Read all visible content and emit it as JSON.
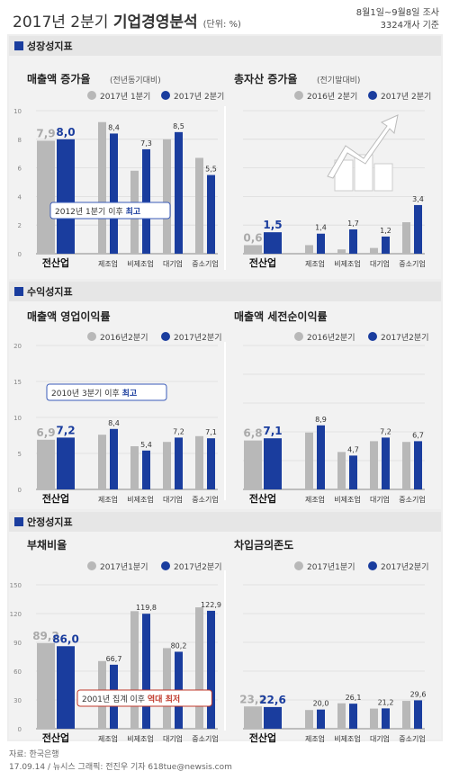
{
  "header": {
    "title_plain": "2017년 2분기 ",
    "title_bold": "기업경영분석",
    "unit": "(단위: %)",
    "period_line1": "8월1일~9월8일 조사",
    "period_line2": "3324개사 기준"
  },
  "sections": [
    {
      "title": "성장성지표"
    },
    {
      "title": "수익성지표"
    },
    {
      "title": "안정성지표"
    }
  ],
  "footer": {
    "source": "자료: 한국은행",
    "credit": "17.09.14 / 뉴시스 그래픽: 전진우 기자 618tue@newsis.com"
  },
  "colors": {
    "prev": "#b8b8b8",
    "curr": "#1a3d9e",
    "header_bar": "#1a3d9e",
    "section_bg": "#e6e6e6",
    "panel_bg": "#f2f2f2",
    "highlight_red": "#c0392b"
  },
  "chart_data": [
    {
      "type": "bar",
      "title": "매출액 증가율",
      "subtitle": "(전년동기대비)",
      "categories": [
        "전산업",
        "제조업",
        "비제조업",
        "대기업",
        "중소기업"
      ],
      "series": [
        {
          "name": "2017년 1분기",
          "values": [
            7.9,
            9.2,
            5.8,
            8.0,
            6.7
          ]
        },
        {
          "name": "2017년 2분기",
          "values": [
            8.0,
            8.4,
            7.3,
            8.5,
            5.5
          ]
        }
      ],
      "value_labels": [
        "7,9",
        "8,0",
        "8,4",
        "7,3",
        "8,5",
        "5,5"
      ],
      "ylim": [
        0,
        10
      ],
      "yticks": [
        "10",
        "8",
        "6",
        "4",
        "2",
        "0"
      ],
      "annotation": {
        "text": "2012년 1분기 이후 ",
        "bold": "최고"
      }
    },
    {
      "type": "bar",
      "title": "총자산 증가율",
      "subtitle": "(전기말대비)",
      "categories": [
        "전산업",
        "제조업",
        "비제조업",
        "대기업",
        "중소기업"
      ],
      "series": [
        {
          "name": "2016년 2분기",
          "values": [
            0.6,
            0.6,
            0.3,
            0.4,
            2.2
          ]
        },
        {
          "name": "2017년 2분기",
          "values": [
            1.5,
            1.4,
            1.7,
            1.2,
            3.4
          ]
        }
      ],
      "value_labels": [
        "0,6",
        "1,5",
        "1,4",
        "1,7",
        "1,2",
        "3,4"
      ],
      "ylim": [
        0,
        10
      ]
    },
    {
      "type": "bar",
      "title": "매출액 영업이익률",
      "categories": [
        "전산업",
        "제조업",
        "비제조업",
        "대기업",
        "중소기업"
      ],
      "series": [
        {
          "name": "2016년2분기",
          "values": [
            6.9,
            7.6,
            6.0,
            6.6,
            7.4
          ]
        },
        {
          "name": "2017년2분기",
          "values": [
            7.2,
            8.4,
            5.4,
            7.2,
            7.1
          ]
        }
      ],
      "value_labels": [
        "6,9",
        "7,2",
        "8,4",
        "5,4",
        "7,2",
        "7,1"
      ],
      "ylim": [
        0,
        20
      ],
      "yticks": [
        "20",
        "15",
        "10",
        "5",
        "0"
      ],
      "annotation": {
        "text": "2010년 3분기 이후 ",
        "bold": "최고"
      }
    },
    {
      "type": "bar",
      "title": "매출액 세전순이익률",
      "categories": [
        "전산업",
        "제조업",
        "비제조업",
        "대기업",
        "중소기업"
      ],
      "series": [
        {
          "name": "2016년2분기",
          "values": [
            6.8,
            7.9,
            5.2,
            6.7,
            6.6
          ]
        },
        {
          "name": "2017년2분기",
          "values": [
            7.1,
            8.9,
            4.7,
            7.2,
            6.7
          ]
        }
      ],
      "value_labels": [
        "6,8",
        "7,1",
        "8,9",
        "4,7",
        "7,2",
        "6,7"
      ],
      "ylim": [
        0,
        20
      ]
    },
    {
      "type": "bar",
      "title": "부채비율",
      "categories": [
        "전산업",
        "제조업",
        "비제조업",
        "대기업",
        "중소기업"
      ],
      "series": [
        {
          "name": "2017년1분기",
          "values": [
            89.2,
            70.5,
            122.5,
            84.0,
            126.5
          ]
        },
        {
          "name": "2017년2분기",
          "values": [
            86.0,
            66.7,
            119.8,
            80.2,
            122.9
          ]
        }
      ],
      "value_labels": [
        "89,2",
        "86,0",
        "66,7",
        "119,8",
        "80,2",
        "122,9"
      ],
      "ylim": [
        0,
        150
      ],
      "yticks": [
        "150",
        "120",
        "90",
        "60",
        "30",
        "0"
      ],
      "annotation": {
        "text": "2001년 집계 이후 ",
        "bold": "역대 최저"
      }
    },
    {
      "type": "bar",
      "title": "차입금의존도",
      "categories": [
        "전산업",
        "제조업",
        "비제조업",
        "대기업",
        "중소기업"
      ],
      "series": [
        {
          "name": "2017년1분기",
          "values": [
            23.2,
            19.5,
            26.5,
            21.0,
            29.0
          ]
        },
        {
          "name": "2017년2분기",
          "values": [
            22.6,
            20.0,
            26.1,
            21.2,
            29.6
          ]
        }
      ],
      "value_labels": [
        "23,2",
        "22,6",
        "20,0",
        "26,1",
        "21,2",
        "29,6"
      ],
      "ylim": [
        0,
        150
      ]
    }
  ]
}
